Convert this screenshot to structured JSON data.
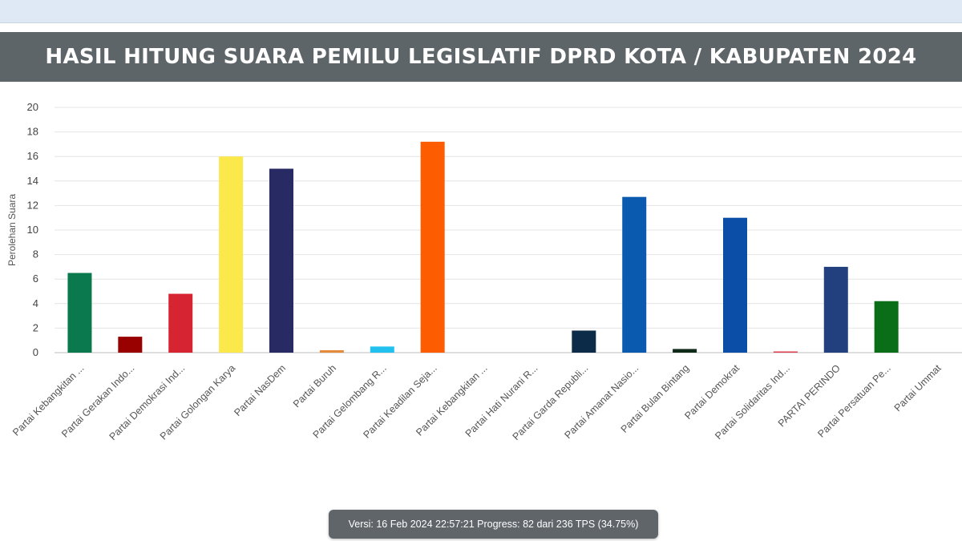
{
  "breadcrumb": "",
  "banner": {
    "title": "HASIL HITUNG SUARA PEMILU LEGISLATIF DPRD KOTA / KABUPATEN 2024"
  },
  "status": {
    "text": "Versi: 16 Feb 2024 22:57:21 Progress: 82 dari 236 TPS (34.75%)"
  },
  "chart_data": {
    "type": "bar",
    "title": "",
    "xlabel": "",
    "ylabel": "Perolehan Suara",
    "ylim": [
      0,
      20
    ],
    "yticks": [
      0,
      2,
      4,
      6,
      8,
      10,
      12,
      14,
      16,
      18,
      20
    ],
    "grid": true,
    "categories": [
      "Partai Kebangkitan ...",
      "Partai Gerakan Indo...",
      "Partai Demokrasi Ind...",
      "Partai Golongan Karya",
      "Partai NasDem",
      "Partai Buruh",
      "Partai Gelombang R...",
      "Partai Keadilan Seja...",
      "Partai Kebangkitan ...",
      "Partai Hati Nurani R...",
      "Partai Garda Republi...",
      "Partai Amanat Nasio...",
      "Partai Bulan Bintang",
      "Partai Demokrat",
      "Partai Solidaritas Ind...",
      "PARTAI PERINDO",
      "Partai Persatuan Pe...",
      "Partai Ummat"
    ],
    "values": [
      6.5,
      1.3,
      4.8,
      16,
      15,
      0.2,
      0.5,
      17.2,
      0,
      0,
      1.8,
      12.7,
      0.3,
      11,
      0.1,
      7,
      4.2,
      0
    ],
    "colors": [
      "#0a7a4e",
      "#990000",
      "#d62432",
      "#fbe84a",
      "#282a64",
      "#e58a3a",
      "#22c0ee",
      "#fd5d00",
      "#0c8a4a",
      "#e8a020",
      "#0c2b48",
      "#0a5bb0",
      "#102a1a",
      "#0a4ea8",
      "#e04050",
      "#23407e",
      "#0a6e18",
      "#2e8a4a"
    ]
  }
}
